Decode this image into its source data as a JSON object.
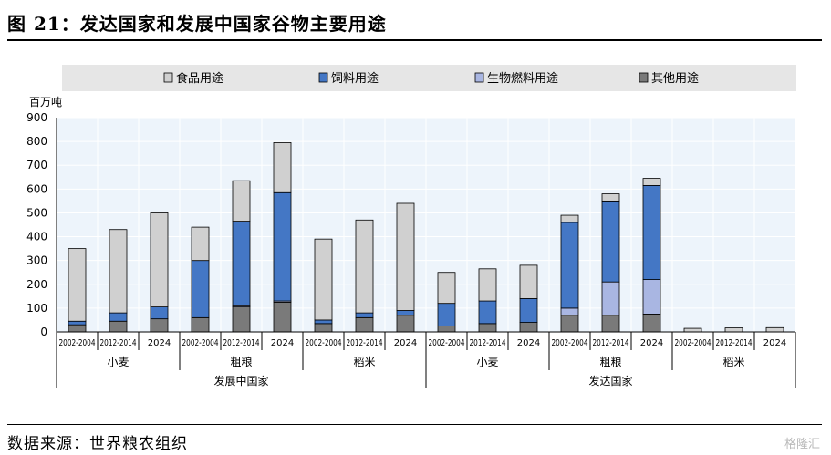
{
  "figure": {
    "title": "图 21：发达国家和发展中国家谷物主要用途",
    "source": "数据来源：世界粮农组织",
    "watermark": "格隆汇"
  },
  "colors": {
    "food": "#d0d0d0",
    "feed": "#4477c5",
    "biofuel": "#a9b6e2",
    "other": "#7a7a7a",
    "plot_bg": "#edf4fb",
    "legend_bg": "#e6e6e6",
    "grid": "#ffffff",
    "bar_stroke": "#000000"
  },
  "chart_data": {
    "type": "bar",
    "stacked": true,
    "y_unit_label": "百万吨",
    "ylim": [
      0,
      900
    ],
    "y_ticks": [
      0,
      100,
      200,
      300,
      400,
      500,
      600,
      700,
      800,
      900
    ],
    "grid": true,
    "legend_position": "top",
    "legend": [
      {
        "name": "食品用途",
        "color_key": "food"
      },
      {
        "name": "饲料用途",
        "color_key": "feed"
      },
      {
        "name": "生物燃料用途",
        "color_key": "biofuel"
      },
      {
        "name": "其他用途",
        "color_key": "other"
      }
    ],
    "stack_order": [
      "other",
      "biofuel",
      "feed",
      "food"
    ],
    "categories": [
      "2002-2004",
      "2012-2014",
      "2024",
      "2002-2004",
      "2012-2014",
      "2024",
      "2002-2004",
      "2012-2014",
      "2024",
      "2002-2004",
      "2012-2014",
      "2024",
      "2002-2004",
      "2012-2014",
      "2024",
      "2002-2004",
      "2012-2014",
      "2024"
    ],
    "crop_groups": [
      "小麦",
      "粗粮",
      "稻米",
      "小麦",
      "粗粮",
      "稻米"
    ],
    "region_groups": [
      "发展中国家",
      "发达国家"
    ],
    "series": [
      {
        "name": "其他用途",
        "key": "other",
        "values": [
          30,
          45,
          55,
          60,
          105,
          125,
          35,
          60,
          70,
          25,
          35,
          40,
          70,
          70,
          75,
          0,
          0,
          0
        ]
      },
      {
        "name": "生物燃料用途",
        "key": "biofuel",
        "values": [
          0,
          0,
          0,
          0,
          5,
          5,
          0,
          0,
          0,
          0,
          0,
          0,
          30,
          140,
          145,
          0,
          0,
          0
        ]
      },
      {
        "name": "饲料用途",
        "key": "feed",
        "values": [
          15,
          35,
          50,
          240,
          355,
          455,
          15,
          20,
          20,
          95,
          95,
          100,
          360,
          340,
          395,
          0,
          0,
          0
        ]
      },
      {
        "name": "食品用途",
        "key": "food",
        "values": [
          305,
          350,
          395,
          140,
          170,
          210,
          340,
          390,
          450,
          130,
          135,
          140,
          30,
          30,
          30,
          15,
          17,
          18
        ]
      }
    ]
  }
}
